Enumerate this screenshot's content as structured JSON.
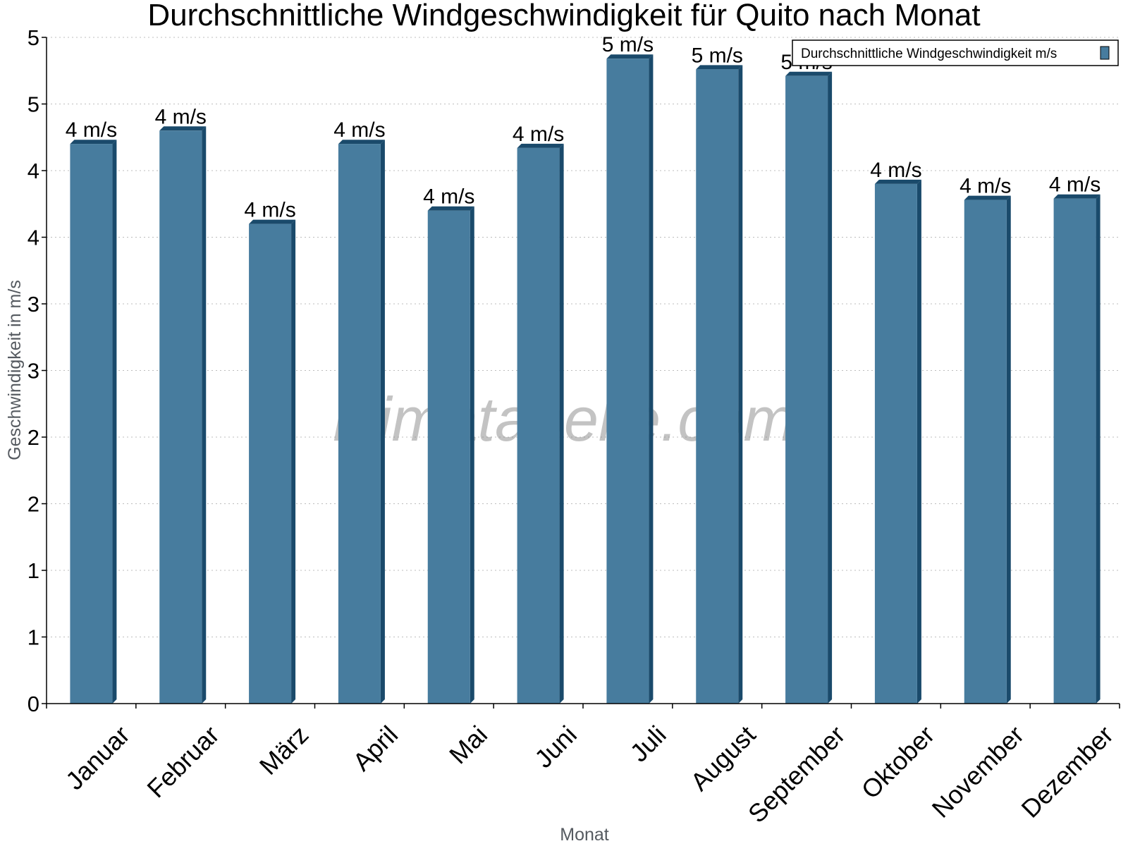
{
  "watermark": "klimatabelle.com",
  "chart_data": {
    "type": "bar",
    "title": "Durchschnittliche Windgeschwindigkeit für Quito nach Monat",
    "xlabel": "Monat",
    "ylabel": "Geschwindigkeit in m/s",
    "categories": [
      "Januar",
      "Februar",
      "März",
      "April",
      "Mai",
      "Juni",
      "Juli",
      "August",
      "September",
      "Oktober",
      "November",
      "Dezember"
    ],
    "series": [
      {
        "name": "Durchschnittliche Windgeschwindigkeit m/s",
        "values": [
          4.2,
          4.3,
          3.6,
          4.2,
          3.7,
          4.17,
          4.84,
          4.76,
          4.71,
          3.9,
          3.78,
          3.79
        ],
        "labels": [
          "4 m/s",
          "4 m/s",
          "4 m/s",
          "4 m/s",
          "4 m/s",
          "4 m/s",
          "5 m/s",
          "5 m/s",
          "5 m/s",
          "4 m/s",
          "4 m/s",
          "4 m/s"
        ],
        "color": "#477c9e",
        "side_color": "#1a4a6b"
      }
    ],
    "ylim": [
      0,
      5
    ],
    "yticks": [
      0,
      0.5,
      1,
      1.5,
      2,
      2.5,
      3,
      3.5,
      4,
      4.5,
      5
    ],
    "ytick_labels": [
      "0",
      "1",
      "1",
      "2",
      "2",
      "3",
      "3",
      "4",
      "4",
      "5",
      "5"
    ],
    "grid": true,
    "legend_position": "top-right"
  }
}
